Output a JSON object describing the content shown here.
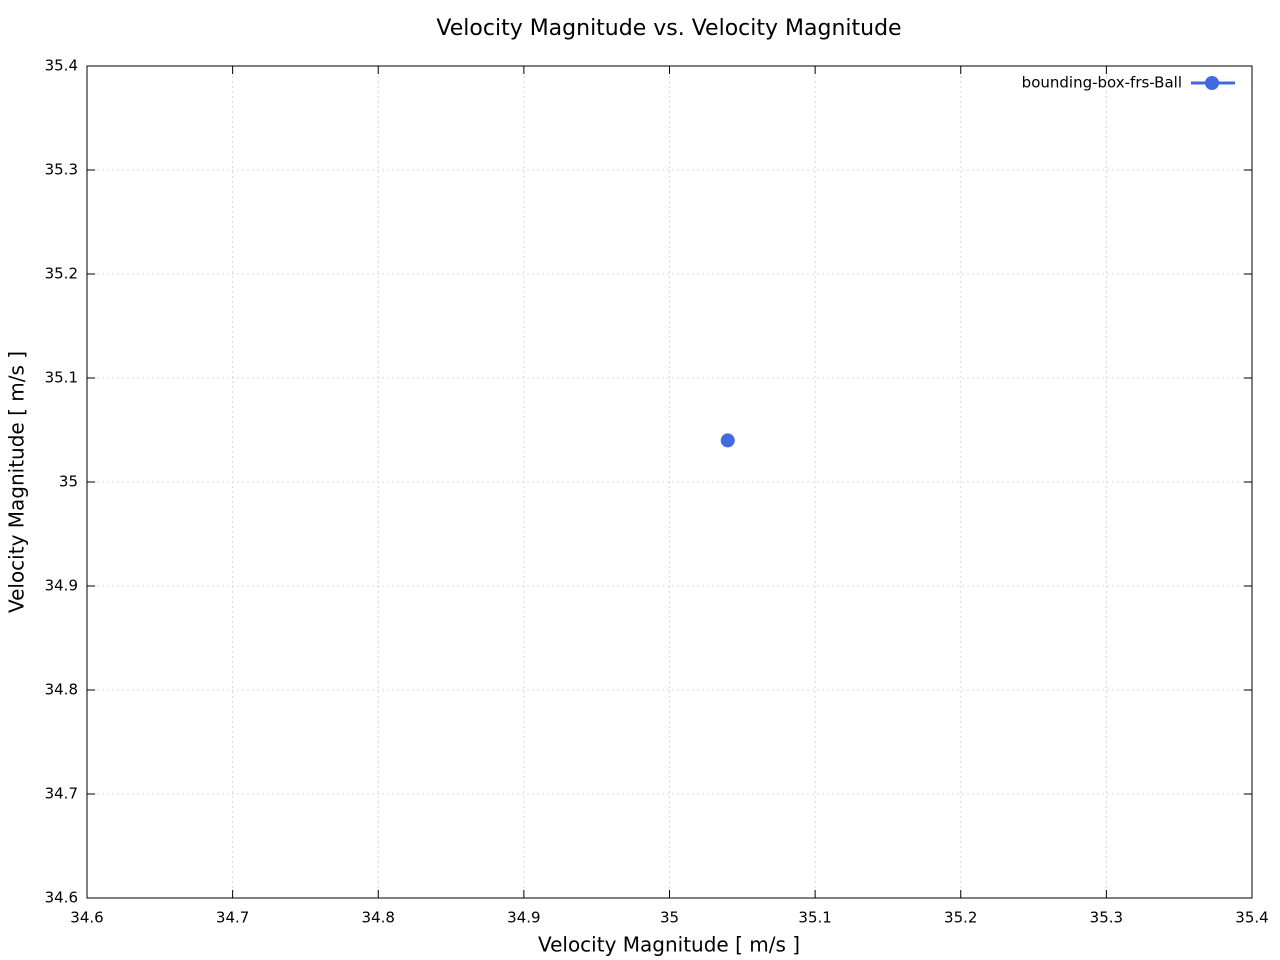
{
  "chart_data": {
    "type": "scatter",
    "title": "Velocity Magnitude vs. Velocity Magnitude",
    "x_label": "Velocity Magnitude [ m/s ]",
    "y_label": "Velocity Magnitude [ m/s ]",
    "series": [
      {
        "name": "bounding-box-frs-Ball",
        "color": "#4169e1",
        "x": [
          35.04
        ],
        "values": [
          35.04
        ]
      }
    ],
    "xlim": [
      34.6,
      35.4
    ],
    "ylim": [
      34.6,
      35.4
    ],
    "xticks": [
      34.6,
      34.7,
      34.8,
      34.9,
      35,
      35.1,
      35.2,
      35.3,
      35.4
    ],
    "yticks": [
      34.6,
      34.7,
      34.8,
      34.9,
      35,
      35.1,
      35.2,
      35.3,
      35.4
    ],
    "grid": true,
    "legend": "top-right"
  }
}
